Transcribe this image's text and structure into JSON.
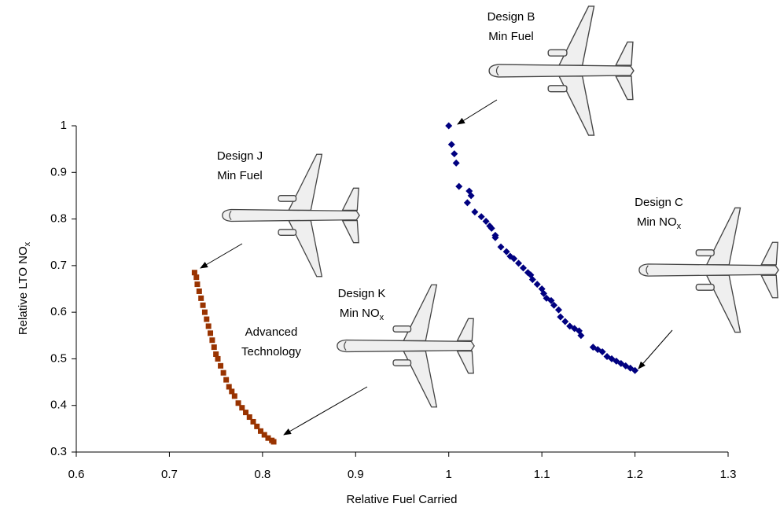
{
  "chart_data": {
    "type": "scatter",
    "xlabel": "Relative Fuel Carried",
    "ylabel": [
      "Relative LTO NO",
      "x"
    ],
    "xlim": [
      0.6,
      1.3
    ],
    "ylim": [
      0.3,
      1.0
    ],
    "xticks": [
      0.6,
      0.7,
      0.8,
      0.9,
      1,
      1.1,
      1.2,
      1.3
    ],
    "yticks": [
      0.3,
      0.4,
      0.5,
      0.6,
      0.7,
      0.8,
      0.9,
      1
    ],
    "grid": false,
    "annotations": [
      {
        "lines": [
          [
            "Design B"
          ],
          [
            "Min Fuel"
          ]
        ]
      },
      {
        "lines": [
          [
            "Design J"
          ],
          [
            "Min Fuel"
          ]
        ]
      },
      {
        "lines": [
          [
            "Design K"
          ],
          [
            "Min NO",
            "x"
          ]
        ]
      },
      {
        "lines": [
          [
            "Design C"
          ],
          [
            "Min NO",
            "x"
          ]
        ]
      },
      {
        "lines": [
          [
            "Advanced"
          ],
          [
            "Technology"
          ]
        ]
      }
    ],
    "series": [
      {
        "color": "#000080",
        "marker": "diamond",
        "x": [
          1.0,
          1.003,
          1.006,
          1.008,
          1.011,
          1.022,
          1.024,
          1.02,
          1.028,
          1.035,
          1.04,
          1.044,
          1.046,
          1.05,
          1.05,
          1.056,
          1.062,
          1.066,
          1.07,
          1.075,
          1.08,
          1.085,
          1.088,
          1.09,
          1.095,
          1.1,
          1.102,
          1.105,
          1.11,
          1.113,
          1.118,
          1.12,
          1.125,
          1.13,
          1.135,
          1.14,
          1.142,
          1.155,
          1.16,
          1.165,
          1.17,
          1.175,
          1.18,
          1.185,
          1.19,
          1.195,
          1.2
        ],
        "values": [
          1.0,
          0.96,
          0.94,
          0.92,
          0.87,
          0.86,
          0.85,
          0.835,
          0.815,
          0.805,
          0.795,
          0.785,
          0.78,
          0.765,
          0.76,
          0.74,
          0.73,
          0.72,
          0.715,
          0.705,
          0.695,
          0.685,
          0.68,
          0.67,
          0.66,
          0.65,
          0.64,
          0.63,
          0.625,
          0.615,
          0.605,
          0.59,
          0.58,
          0.57,
          0.565,
          0.56,
          0.55,
          0.525,
          0.52,
          0.515,
          0.505,
          0.5,
          0.495,
          0.49,
          0.485,
          0.48,
          0.475
        ]
      },
      {
        "color": "#993300",
        "marker": "square",
        "x": [
          0.727,
          0.729,
          0.73,
          0.732,
          0.734,
          0.736,
          0.738,
          0.74,
          0.742,
          0.744,
          0.746,
          0.748,
          0.75,
          0.752,
          0.755,
          0.758,
          0.761,
          0.764,
          0.767,
          0.77,
          0.774,
          0.778,
          0.782,
          0.786,
          0.79,
          0.794,
          0.798,
          0.802,
          0.806,
          0.81,
          0.812
        ],
        "values": [
          0.685,
          0.675,
          0.66,
          0.645,
          0.63,
          0.615,
          0.6,
          0.585,
          0.57,
          0.555,
          0.54,
          0.525,
          0.51,
          0.5,
          0.485,
          0.47,
          0.455,
          0.44,
          0.43,
          0.42,
          0.405,
          0.395,
          0.385,
          0.375,
          0.365,
          0.355,
          0.345,
          0.337,
          0.33,
          0.325,
          0.322
        ]
      }
    ]
  }
}
